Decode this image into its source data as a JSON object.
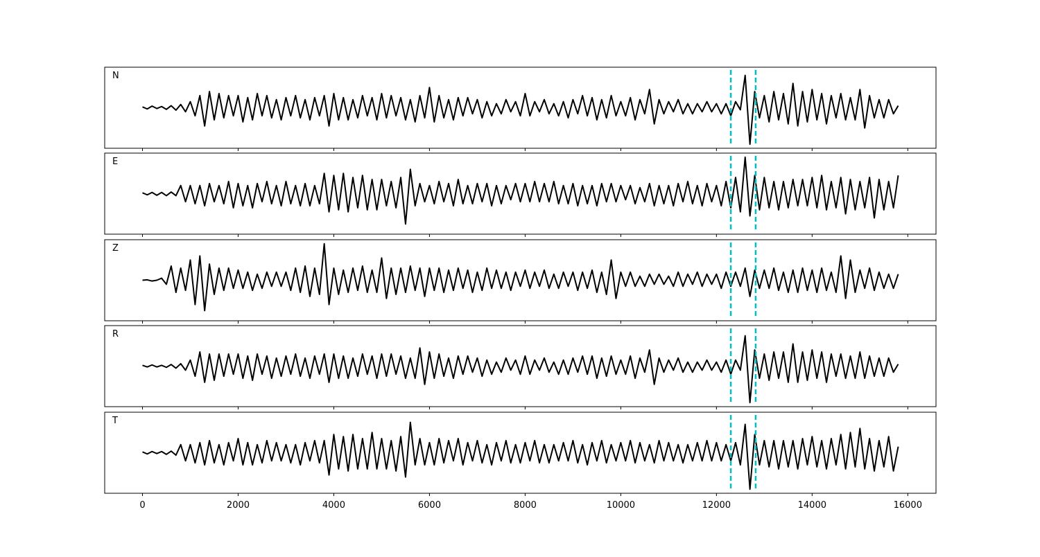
{
  "chart_data": {
    "type": "line",
    "x": [
      0,
      100,
      200,
      300,
      400,
      500,
      600,
      700,
      800,
      900,
      1000,
      1100,
      1200,
      1300,
      1400,
      1500,
      1600,
      1700,
      1800,
      1900,
      2000,
      2100,
      2200,
      2300,
      2400,
      2500,
      2600,
      2700,
      2800,
      2900,
      3000,
      3100,
      3200,
      3300,
      3400,
      3500,
      3600,
      3700,
      3800,
      3900,
      4000,
      4100,
      4200,
      4300,
      4400,
      4500,
      4600,
      4700,
      4800,
      4900,
      5000,
      5100,
      5200,
      5300,
      5400,
      5500,
      5600,
      5700,
      5800,
      5900,
      6000,
      6100,
      6200,
      6300,
      6400,
      6500,
      6600,
      6700,
      6800,
      6900,
      7000,
      7100,
      7200,
      7300,
      7400,
      7500,
      7600,
      7700,
      7800,
      7900,
      8000,
      8100,
      8200,
      8300,
      8400,
      8500,
      8600,
      8700,
      8800,
      8900,
      9000,
      9100,
      9200,
      9300,
      9400,
      9500,
      9600,
      9700,
      9800,
      9900,
      10000,
      10100,
      10200,
      10300,
      10400,
      10500,
      10600,
      10700,
      10800,
      10900,
      11000,
      11100,
      11200,
      11300,
      11400,
      11500,
      11600,
      11700,
      11800,
      11900,
      12000,
      12100,
      12200,
      12300,
      12400,
      12500,
      12600,
      12700,
      12800,
      12900,
      13000,
      13100,
      13200,
      13300,
      13400,
      13500,
      13600,
      13700,
      13800,
      13900,
      14000,
      14100,
      14200,
      14300,
      14400,
      14500,
      14600,
      14700,
      14800,
      14900,
      15000,
      15100,
      15200,
      15300,
      15400,
      15500,
      15600,
      15700,
      15800
    ],
    "series": [
      {
        "name": "N",
        "color": "#000000",
        "values": [
          0.02,
          -0.03,
          0.04,
          -0.02,
          0.03,
          -0.04,
          0.05,
          -0.06,
          0.08,
          -0.1,
          0.15,
          -0.2,
          0.3,
          -0.45,
          0.4,
          -0.3,
          0.35,
          -0.25,
          0.3,
          -0.2,
          0.3,
          -0.35,
          0.25,
          -0.3,
          0.35,
          -0.2,
          0.3,
          -0.25,
          0.2,
          -0.3,
          0.25,
          -0.2,
          0.3,
          -0.25,
          0.2,
          -0.3,
          0.25,
          -0.2,
          0.3,
          -0.45,
          0.35,
          -0.3,
          0.25,
          -0.3,
          0.2,
          -0.25,
          0.3,
          -0.2,
          0.25,
          -0.3,
          0.35,
          -0.25,
          0.3,
          -0.2,
          0.25,
          -0.3,
          0.2,
          -0.35,
          0.3,
          -0.25,
          0.5,
          -0.35,
          0.3,
          -0.25,
          0.2,
          -0.3,
          0.25,
          -0.2,
          0.25,
          -0.15,
          0.2,
          -0.25,
          0.15,
          -0.2,
          0.1,
          -0.15,
          0.2,
          -0.1,
          0.15,
          -0.2,
          0.35,
          -0.2,
          0.15,
          -0.1,
          0.2,
          -0.15,
          0.1,
          -0.2,
          0.15,
          -0.25,
          0.2,
          -0.15,
          0.3,
          -0.2,
          0.25,
          -0.3,
          0.2,
          -0.25,
          0.3,
          -0.2,
          0.15,
          -0.2,
          0.25,
          -0.3,
          0.2,
          -0.15,
          0.45,
          -0.4,
          0.2,
          -0.15,
          0.15,
          -0.1,
          0.2,
          -0.15,
          0.1,
          -0.15,
          0.1,
          -0.1,
          0.15,
          -0.1,
          0.1,
          -0.15,
          0.1,
          -0.2,
          0.15,
          -0.05,
          0.8,
          -0.9,
          0.4,
          -0.25,
          0.3,
          -0.35,
          0.4,
          -0.3,
          0.35,
          -0.4,
          0.6,
          -0.45,
          0.4,
          -0.35,
          0.45,
          -0.3,
          0.35,
          -0.4,
          0.3,
          -0.25,
          0.35,
          -0.3,
          0.25,
          -0.3,
          0.45,
          -0.5,
          0.3,
          -0.25,
          0.2,
          -0.25,
          0.2,
          -0.15,
          0.05
        ]
      },
      {
        "name": "E",
        "color": "#000000",
        "values": [
          0.02,
          -0.03,
          0.03,
          -0.04,
          0.03,
          -0.05,
          0.04,
          -0.05,
          0.2,
          -0.2,
          0.2,
          -0.25,
          0.2,
          -0.3,
          0.25,
          -0.2,
          0.2,
          -0.25,
          0.3,
          -0.35,
          0.25,
          -0.3,
          0.2,
          -0.35,
          0.25,
          -0.2,
          0.3,
          -0.25,
          0.2,
          -0.3,
          0.3,
          -0.25,
          0.2,
          -0.3,
          0.25,
          -0.3,
          0.2,
          -0.25,
          0.5,
          -0.45,
          0.45,
          -0.4,
          0.5,
          -0.45,
          0.4,
          -0.35,
          0.45,
          -0.4,
          0.35,
          -0.4,
          0.35,
          -0.3,
          0.3,
          -0.35,
          0.4,
          -0.75,
          0.6,
          -0.3,
          0.25,
          -0.2,
          0.2,
          -0.25,
          0.3,
          -0.2,
          0.25,
          -0.3,
          0.35,
          -0.25,
          0.2,
          -0.25,
          0.25,
          -0.2,
          0.25,
          -0.3,
          0.2,
          -0.25,
          0.2,
          -0.15,
          0.25,
          -0.2,
          0.25,
          -0.2,
          0.3,
          -0.2,
          0.25,
          -0.2,
          0.3,
          -0.25,
          0.2,
          -0.25,
          0.25,
          -0.3,
          0.2,
          -0.25,
          0.2,
          -0.3,
          0.25,
          -0.2,
          0.25,
          -0.2,
          0.2,
          -0.15,
          0.2,
          -0.25,
          0.15,
          -0.2,
          0.25,
          -0.3,
          0.2,
          -0.25,
          0.2,
          -0.3,
          0.25,
          -0.2,
          0.3,
          -0.25,
          0.2,
          -0.3,
          0.25,
          -0.2,
          0.2,
          -0.3,
          0.3,
          -0.35,
          0.4,
          -0.45,
          0.9,
          -0.55,
          0.45,
          -0.4,
          0.4,
          -0.35,
          0.3,
          -0.4,
          0.3,
          -0.35,
          0.35,
          -0.3,
          0.35,
          -0.3,
          0.4,
          -0.35,
          0.45,
          -0.4,
          0.3,
          -0.35,
          0.4,
          -0.5,
          0.35,
          -0.4,
          0.3,
          -0.35,
          0.4,
          -0.6,
          0.35,
          -0.4,
          0.3,
          -0.35,
          0.45
        ]
      },
      {
        "name": "Z",
        "color": "#000000",
        "values": [
          0.0,
          0.01,
          -0.02,
          0.0,
          0.05,
          -0.1,
          0.35,
          -0.3,
          0.3,
          -0.25,
          0.5,
          -0.6,
          0.6,
          -0.75,
          0.4,
          -0.35,
          0.3,
          -0.25,
          0.3,
          -0.2,
          0.25,
          -0.2,
          0.2,
          -0.25,
          0.15,
          -0.2,
          0.2,
          -0.15,
          0.2,
          -0.15,
          0.2,
          -0.25,
          0.3,
          -0.3,
          0.35,
          -0.4,
          0.3,
          -0.35,
          0.9,
          -0.6,
          0.3,
          -0.35,
          0.25,
          -0.3,
          0.3,
          -0.25,
          0.35,
          -0.3,
          0.25,
          -0.3,
          0.55,
          -0.45,
          0.3,
          -0.35,
          0.3,
          -0.3,
          0.35,
          -0.25,
          0.3,
          -0.4,
          0.3,
          -0.25,
          0.3,
          -0.3,
          0.25,
          -0.25,
          0.3,
          -0.2,
          0.25,
          -0.3,
          0.2,
          -0.25,
          0.3,
          -0.2,
          0.25,
          -0.2,
          0.2,
          -0.25,
          0.2,
          -0.15,
          0.25,
          -0.2,
          0.2,
          -0.15,
          0.25,
          -0.2,
          0.15,
          -0.2,
          0.2,
          -0.15,
          0.2,
          -0.25,
          0.2,
          -0.2,
          0.25,
          -0.3,
          0.2,
          -0.35,
          0.5,
          -0.45,
          0.2,
          -0.15,
          0.2,
          -0.15,
          0.1,
          -0.15,
          0.15,
          -0.1,
          0.15,
          -0.1,
          0.1,
          -0.15,
          0.2,
          -0.15,
          0.15,
          -0.1,
          0.2,
          -0.15,
          0.15,
          -0.1,
          0.15,
          -0.2,
          0.2,
          -0.15,
          0.2,
          -0.15,
          0.3,
          -0.4,
          0.25,
          -0.2,
          0.25,
          -0.2,
          0.3,
          -0.25,
          0.2,
          -0.3,
          0.25,
          -0.3,
          0.3,
          -0.25,
          0.25,
          -0.3,
          0.3,
          -0.25,
          0.2,
          -0.3,
          0.6,
          -0.45,
          0.5,
          -0.3,
          0.25,
          -0.2,
          0.3,
          -0.25,
          0.2,
          -0.2,
          0.15,
          -0.2,
          0.15
        ]
      },
      {
        "name": "R",
        "color": "#000000",
        "values": [
          0.02,
          -0.02,
          0.03,
          -0.02,
          0.02,
          -0.03,
          0.04,
          -0.05,
          0.06,
          -0.1,
          0.15,
          -0.25,
          0.35,
          -0.4,
          0.3,
          -0.35,
          0.3,
          -0.25,
          0.3,
          -0.2,
          0.3,
          -0.3,
          0.25,
          -0.35,
          0.3,
          -0.2,
          0.25,
          -0.3,
          0.2,
          -0.25,
          0.25,
          -0.2,
          0.3,
          -0.25,
          0.2,
          -0.3,
          0.25,
          -0.2,
          0.3,
          -0.4,
          0.3,
          -0.3,
          0.25,
          -0.3,
          0.2,
          -0.25,
          0.3,
          -0.2,
          0.25,
          -0.3,
          0.3,
          -0.25,
          0.3,
          -0.2,
          0.25,
          -0.3,
          0.2,
          -0.3,
          0.45,
          -0.45,
          0.35,
          -0.3,
          0.3,
          -0.25,
          0.2,
          -0.3,
          0.25,
          -0.2,
          0.25,
          -0.15,
          0.2,
          -0.25,
          0.15,
          -0.2,
          0.1,
          -0.15,
          0.2,
          -0.1,
          0.15,
          -0.2,
          0.25,
          -0.2,
          0.15,
          -0.1,
          0.2,
          -0.15,
          0.1,
          -0.2,
          0.15,
          -0.2,
          0.2,
          -0.15,
          0.25,
          -0.2,
          0.25,
          -0.3,
          0.2,
          -0.25,
          0.25,
          -0.2,
          0.15,
          -0.2,
          0.25,
          -0.3,
          0.2,
          -0.15,
          0.4,
          -0.45,
          0.2,
          -0.15,
          0.15,
          -0.1,
          0.2,
          -0.15,
          0.1,
          -0.15,
          0.1,
          -0.1,
          0.15,
          -0.1,
          0.1,
          -0.15,
          0.15,
          -0.2,
          0.15,
          -0.1,
          0.75,
          -0.9,
          0.4,
          -0.3,
          0.3,
          -0.35,
          0.35,
          -0.3,
          0.35,
          -0.4,
          0.55,
          -0.4,
          0.35,
          -0.35,
          0.4,
          -0.3,
          0.35,
          -0.4,
          0.3,
          -0.25,
          0.3,
          -0.3,
          0.25,
          -0.3,
          0.35,
          -0.3,
          0.25,
          -0.25,
          0.2,
          -0.25,
          0.2,
          -0.15,
          0.05
        ]
      },
      {
        "name": "T",
        "color": "#000000",
        "values": [
          0.02,
          -0.03,
          0.03,
          -0.02,
          0.03,
          -0.04,
          0.04,
          -0.06,
          0.2,
          -0.2,
          0.2,
          -0.25,
          0.25,
          -0.3,
          0.3,
          -0.25,
          0.2,
          -0.3,
          0.25,
          -0.2,
          0.35,
          -0.3,
          0.25,
          -0.3,
          0.2,
          -0.25,
          0.3,
          -0.2,
          0.25,
          -0.2,
          0.2,
          -0.25,
          0.2,
          -0.3,
          0.25,
          -0.2,
          0.3,
          -0.25,
          0.3,
          -0.55,
          0.45,
          -0.4,
          0.4,
          -0.45,
          0.45,
          -0.4,
          0.35,
          -0.4,
          0.5,
          -0.4,
          0.35,
          -0.4,
          0.3,
          -0.45,
          0.4,
          -0.6,
          0.75,
          -0.3,
          0.35,
          -0.3,
          0.25,
          -0.3,
          0.35,
          -0.25,
          0.3,
          -0.2,
          0.35,
          -0.3,
          0.25,
          -0.2,
          0.3,
          -0.25,
          0.2,
          -0.3,
          0.25,
          -0.2,
          0.3,
          -0.25,
          0.2,
          -0.25,
          0.25,
          -0.2,
          0.3,
          -0.25,
          0.2,
          -0.25,
          0.2,
          -0.2,
          0.25,
          -0.2,
          0.3,
          -0.25,
          0.2,
          -0.3,
          0.25,
          -0.2,
          0.3,
          -0.25,
          0.2,
          -0.2,
          0.25,
          -0.2,
          0.3,
          -0.25,
          0.25,
          -0.2,
          0.2,
          -0.25,
          0.3,
          -0.2,
          0.25,
          -0.2,
          0.2,
          -0.25,
          0.2,
          -0.2,
          0.25,
          -0.2,
          0.3,
          -0.2,
          0.25,
          -0.2,
          0.2,
          -0.2,
          0.25,
          -0.3,
          0.7,
          -0.9,
          0.45,
          -0.3,
          0.3,
          -0.35,
          0.3,
          -0.4,
          0.3,
          -0.35,
          0.3,
          -0.4,
          0.35,
          -0.3,
          0.4,
          -0.35,
          0.3,
          -0.4,
          0.35,
          -0.3,
          0.45,
          -0.4,
          0.5,
          -0.35,
          0.6,
          -0.4,
          0.35,
          -0.45,
          0.3,
          -0.35,
          0.4,
          -0.45,
          0.15
        ]
      }
    ],
    "xlim": [
      -790,
      16590
    ],
    "xticks": [
      0,
      2000,
      4000,
      6000,
      8000,
      10000,
      12000,
      14000,
      16000
    ],
    "ylim": [
      -1,
      1
    ],
    "vlines": [
      12300,
      12820
    ],
    "vline_color": "#00bfbf"
  }
}
